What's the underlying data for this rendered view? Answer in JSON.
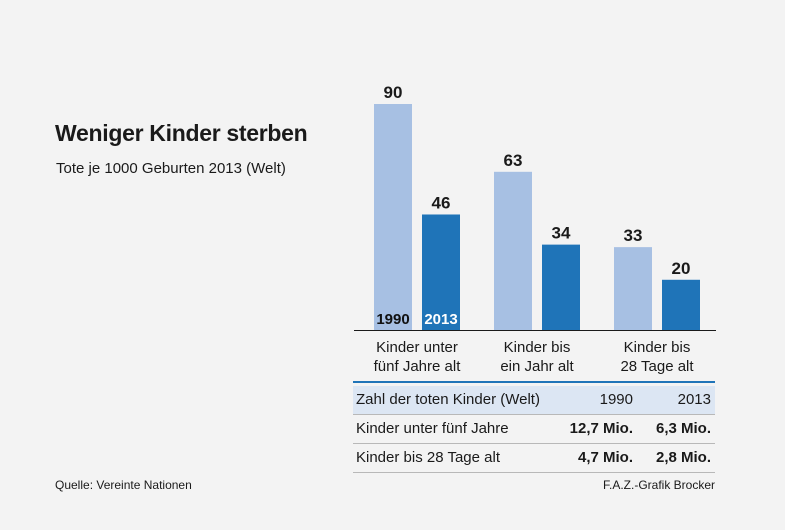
{
  "title": "Weniger Kinder sterben",
  "subtitle": "Tote je 1000 Geburten 2013 (Welt)",
  "chart_data": {
    "type": "bar",
    "title": "Weniger Kinder sterben",
    "subtitle": "Tote je 1000 Geburten 2013 (Welt)",
    "categories": [
      "Kinder unter fünf Jahre alt",
      "Kinder bis ein Jahr alt",
      "Kinder bis 28 Tage alt"
    ],
    "category_lines": [
      [
        "Kinder unter",
        "fünf Jahre alt"
      ],
      [
        "Kinder bis",
        "ein Jahr alt"
      ],
      [
        "Kinder bis",
        "28 Tage alt"
      ]
    ],
    "series": [
      {
        "name": "1990",
        "values": [
          90,
          63,
          33
        ]
      },
      {
        "name": "2013",
        "values": [
          46,
          34,
          20
        ]
      }
    ],
    "ylim": [
      0,
      90
    ],
    "xlabel": "",
    "ylabel": "",
    "grid": false,
    "colors": {
      "1990": "#a7c0e3",
      "2013": "#1f74b8"
    }
  },
  "table": {
    "header": [
      "Zahl der toten Kinder (Welt)",
      "1990",
      "2013"
    ],
    "rows": [
      [
        "Kinder unter fünf Jahre",
        "12,7 Mio.",
        "6,3 Mio."
      ],
      [
        "Kinder bis 28 Tage alt",
        "4,7 Mio.",
        "2,8 Mio."
      ]
    ]
  },
  "source": "Quelle: Vereinte Nationen",
  "credit": "F.A.Z.-Grafik Brocker"
}
